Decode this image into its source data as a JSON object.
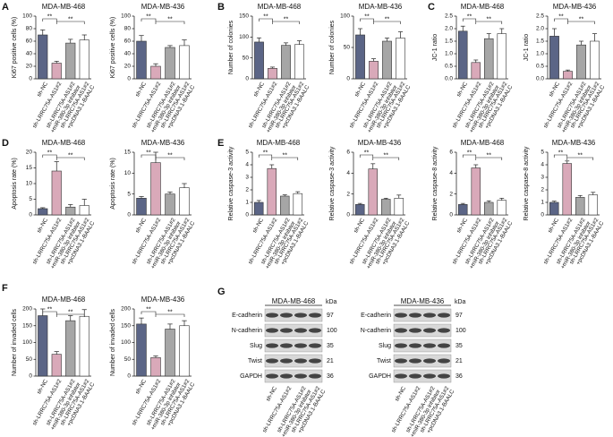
{
  "panel_labels": [
    "A",
    "B",
    "C",
    "D",
    "E",
    "F",
    "G"
  ],
  "chart_data": [
    {
      "type": "bar",
      "title": "MDA-MB-468",
      "y_label": "Ki67 positive cells (%)",
      "categories": [
        "sh-NC",
        "sh-LRRC75A-AS1#2",
        "sh-LRRC75A-AS1#2\n+miR-380-3p inhibitor",
        "sh-LRRC75A-AS1#2\n+pcDNA3.1-BAALC"
      ],
      "values": [
        70,
        25,
        57,
        62
      ],
      "errors": [
        8,
        3,
        6,
        8
      ],
      "colors": [
        "#5b6586",
        "#d9a9b9",
        "#a6a6a6",
        "#ffffff"
      ],
      "ylim": [
        0,
        100
      ],
      "yticks": [
        0,
        20,
        40,
        60,
        80,
        100
      ],
      "annotations": [
        "**",
        "**"
      ]
    },
    {
      "type": "bar",
      "title": "MDA-MB-436",
      "y_label": "Ki67 positive cells (%)",
      "categories": [
        "sh-NC",
        "sh-LRRC75A-AS1#2",
        "sh-LRRC75A-AS1#2\n+miR-380-3p inhibitor",
        "sh-LRRC75A-AS1#2\n+pcDNA3.1-BAALC"
      ],
      "values": [
        60,
        20,
        50,
        53
      ],
      "errors": [
        9,
        4,
        3,
        9
      ],
      "colors": [
        "#5b6586",
        "#d9a9b9",
        "#a6a6a6",
        "#ffffff"
      ],
      "ylim": [
        0,
        100
      ],
      "yticks": [
        0,
        20,
        40,
        60,
        80,
        100
      ],
      "annotations": [
        "**",
        "**"
      ]
    },
    {
      "type": "bar",
      "title": "MDA-MB-468",
      "y_label": "Number of colonies",
      "categories": [
        "sh-NC",
        "sh-LRRC75A-AS1#2",
        "sh-LRRC75A-AS1#2\n+miR-380-3p inhibitor",
        "sh-LRRC75A-AS1#2\n+pcDNA3.1-BAALC"
      ],
      "values": [
        88,
        25,
        80,
        82
      ],
      "errors": [
        10,
        3,
        6,
        9
      ],
      "colors": [
        "#5b6586",
        "#d9a9b9",
        "#a6a6a6",
        "#ffffff"
      ],
      "ylim": [
        0,
        150
      ],
      "yticks": [
        0,
        50,
        100,
        150
      ],
      "annotations": [
        "**",
        "**"
      ]
    },
    {
      "type": "bar",
      "title": "MDA-MB-436",
      "y_label": "Number of colonies",
      "categories": [
        "sh-NC",
        "sh-LRRC75A-AS1#2",
        "sh-LRRC75A-AS1#2\n+miR-380-3p inhibitor",
        "sh-LRRC75A-AS1#2\n+pcDNA3.1-BAALC"
      ],
      "values": [
        70,
        28,
        60,
        65
      ],
      "errors": [
        10,
        4,
        5,
        10
      ],
      "colors": [
        "#5b6586",
        "#d9a9b9",
        "#a6a6a6",
        "#ffffff"
      ],
      "ylim": [
        0,
        100
      ],
      "yticks": [
        0,
        50,
        100
      ],
      "annotations": [
        "**",
        "**"
      ]
    },
    {
      "type": "bar",
      "title": "MDA-MB-468",
      "y_label": "JC-1 ratio",
      "categories": [
        "sh-NC",
        "sh-LRRC75A-AS1#2",
        "sh-LRRC75A-AS1#2\n+miR-380-3p inhibitor",
        "sh-LRRC75A-AS1#2\n+pcDNA3.1-BAALC"
      ],
      "values": [
        1.9,
        0.65,
        1.6,
        1.8
      ],
      "errors": [
        0.2,
        0.1,
        0.2,
        0.2
      ],
      "colors": [
        "#5b6586",
        "#d9a9b9",
        "#a6a6a6",
        "#ffffff"
      ],
      "ylim": [
        0,
        2.5
      ],
      "yticks": [
        {
          "value": 0,
          "label": "0.0"
        },
        0.5,
        {
          "value": 1,
          "label": "1.0"
        },
        1.5,
        {
          "value": 2,
          "label": "2.0"
        },
        2.5
      ],
      "annotations": [
        "**",
        "**"
      ]
    },
    {
      "type": "bar",
      "title": "MDA-MB-436",
      "y_label": "JC-1 ratio",
      "categories": [
        "sh-NC",
        "sh-LRRC75A-AS1#2",
        "sh-LRRC75A-AS1#2\n+miR-380-3p inhibitor",
        "sh-LRRC75A-AS1#2\n+pcDNA3.1-BAALC"
      ],
      "values": [
        1.7,
        0.3,
        1.35,
        1.5
      ],
      "errors": [
        0.3,
        0.05,
        0.15,
        0.3
      ],
      "colors": [
        "#5b6586",
        "#d9a9b9",
        "#a6a6a6",
        "#ffffff"
      ],
      "ylim": [
        0,
        2.5
      ],
      "yticks": [
        {
          "value": 0,
          "label": "0.0"
        },
        0.5,
        {
          "value": 1,
          "label": "1.0"
        },
        1.5,
        {
          "value": 2,
          "label": "2.0"
        },
        2.5
      ],
      "annotations": [
        "**",
        "**"
      ]
    },
    {
      "type": "bar",
      "title": "MDA-MB-468",
      "y_label": "Apoptosis rate (%)",
      "categories": [
        "sh-NC",
        "sh-LRRC75A-AS1#2",
        "sh-LRRC75A-AS1#2\n+miR-380-3p inhibitor",
        "sh-LRRC75A-AS1#2\n+pcDNA3.1-BAALC"
      ],
      "values": [
        2,
        14,
        2.5,
        3
      ],
      "errors": [
        0.3,
        3,
        0.8,
        2
      ],
      "colors": [
        "#5b6586",
        "#d9a9b9",
        "#a6a6a6",
        "#ffffff"
      ],
      "ylim": [
        0,
        20
      ],
      "yticks": [
        0,
        5,
        10,
        15,
        20
      ],
      "annotations": [
        "**",
        "**"
      ]
    },
    {
      "type": "bar",
      "title": "MDA-MB-436",
      "y_label": "Apoptosis rate (%)",
      "categories": [
        "sh-NC",
        "sh-LRRC75A-AS1#2",
        "sh-LRRC75A-AS1#2\n+miR-380-3p inhibitor",
        "sh-LRRC75A-AS1#2\n+pcDNA3.1-BAALC"
      ],
      "values": [
        4,
        12.5,
        5,
        6.5
      ],
      "errors": [
        0.4,
        2.5,
        0.5,
        1
      ],
      "colors": [
        "#5b6586",
        "#d9a9b9",
        "#a6a6a6",
        "#ffffff"
      ],
      "ylim": [
        0,
        15
      ],
      "yticks": [
        0,
        5,
        10,
        15
      ],
      "annotations": [
        "**",
        "**"
      ]
    },
    {
      "type": "bar",
      "title": "MDA-MB-468",
      "y_label": "Relative caspase-3 activity",
      "categories": [
        "sh-NC",
        "sh-LRRC75A-AS1#2",
        "sh-LRRC75A-AS1#2\n+miR-380-3p inhibitor",
        "sh-LRRC75A-AS1#2\n+pcDNA3.1-BAALC"
      ],
      "values": [
        1,
        3.7,
        1.5,
        1.7
      ],
      "errors": [
        0.15,
        0.3,
        0.1,
        0.15
      ],
      "colors": [
        "#5b6586",
        "#d9a9b9",
        "#a6a6a6",
        "#ffffff"
      ],
      "ylim": [
        0,
        5
      ],
      "yticks": [
        0,
        1,
        2,
        3,
        4,
        5
      ],
      "annotations": [
        "**",
        "**"
      ]
    },
    {
      "type": "bar",
      "title": "MDA-MB-436",
      "y_label": "Relative caspase-3 activity",
      "categories": [
        "sh-NC",
        "sh-LRRC75A-AS1#2",
        "sh-LRRC75A-AS1#2\n+miR-380-3p inhibitor",
        "sh-LRRC75A-AS1#2\n+pcDNA3.1-BAALC"
      ],
      "values": [
        1,
        4.4,
        1.5,
        1.6
      ],
      "errors": [
        0.1,
        0.5,
        0.1,
        0.3
      ],
      "colors": [
        "#5b6586",
        "#d9a9b9",
        "#a6a6a6",
        "#ffffff"
      ],
      "ylim": [
        0,
        6
      ],
      "yticks": [
        0,
        2,
        4,
        6
      ],
      "annotations": [
        "**",
        "**"
      ]
    },
    {
      "type": "bar",
      "title": "MDA-MB-468",
      "y_label": "Relative caspase-8 activity",
      "categories": [
        "sh-NC",
        "sh-LRRC75A-AS1#2",
        "sh-LRRC75A-AS1#2\n+miR-380-3p inhibitor",
        "sh-LRRC75A-AS1#2\n+pcDNA3.1-BAALC"
      ],
      "values": [
        1,
        4.5,
        1.2,
        1.4
      ],
      "errors": [
        0.1,
        0.3,
        0.15,
        0.2
      ],
      "colors": [
        "#5b6586",
        "#d9a9b9",
        "#a6a6a6",
        "#ffffff"
      ],
      "ylim": [
        0,
        6
      ],
      "yticks": [
        0,
        2,
        4,
        6
      ],
      "annotations": [
        "**",
        "**"
      ]
    },
    {
      "type": "bar",
      "title": "MDA-MB-436",
      "y_label": "Relative caspase-8 activity",
      "categories": [
        "sh-NC",
        "sh-LRRC75A-AS1#2",
        "sh-LRRC75A-AS1#2\n+miR-380-3p inhibitor",
        "sh-LRRC75A-AS1#2\n+pcDNA3.1-BAALC"
      ],
      "values": [
        1,
        4.1,
        1.4,
        1.6
      ],
      "errors": [
        0.1,
        0.2,
        0.15,
        0.2
      ],
      "colors": [
        "#5b6586",
        "#d9a9b9",
        "#a6a6a6",
        "#ffffff"
      ],
      "ylim": [
        0,
        5
      ],
      "yticks": [
        0,
        1,
        2,
        3,
        4,
        5
      ],
      "annotations": [
        "**",
        "**"
      ]
    },
    {
      "type": "bar",
      "title": "MDA-MB-468",
      "y_label": "Number of invaded cells",
      "categories": [
        "sh-NC",
        "sh-LRRC75A-AS1#2",
        "sh-LRRC75A-AS1#2\n+miR-380-3p inhibitor",
        "sh-LRRC75A-AS1#2\n+pcDNA3.1-BAALC"
      ],
      "values": [
        180,
        65,
        165,
        178
      ],
      "errors": [
        20,
        8,
        15,
        20
      ],
      "colors": [
        "#5b6586",
        "#d9a9b9",
        "#a6a6a6",
        "#ffffff"
      ],
      "ylim": [
        0,
        200
      ],
      "yticks": [
        0,
        50,
        100,
        150,
        200
      ],
      "annotations": [
        "**",
        "**"
      ]
    },
    {
      "type": "bar",
      "title": "MDA-MB-436",
      "y_label": "Number of invaded cells",
      "categories": [
        "sh-NC",
        "sh-LRRC75A-AS1#2",
        "sh-LRRC75A-AS1#2\n+miR-380-3p inhibitor",
        "sh-LRRC75A-AS1#2\n+pcDNA3.1-BAALC"
      ],
      "values": [
        155,
        55,
        140,
        150
      ],
      "errors": [
        18,
        5,
        15,
        15
      ],
      "colors": [
        "#5b6586",
        "#d9a9b9",
        "#a6a6a6",
        "#ffffff"
      ],
      "ylim": [
        0,
        200
      ],
      "yticks": [
        0,
        50,
        100,
        150,
        200
      ],
      "annotations": [
        "**",
        "**"
      ]
    }
  ],
  "blot": {
    "titles": [
      "MDA-MB-468",
      "MDA-MB-436"
    ],
    "kda_label": "kDa",
    "proteins": [
      "E-cadherin",
      "N-cadherin",
      "Slug",
      "Twist",
      "GAPDH"
    ],
    "kda": [
      "97",
      "100",
      "35",
      "21",
      "36"
    ],
    "lanes": [
      "sh-NC",
      "sh-LRRC75A-AS1#2",
      "sh-LRRC75A-AS1#2\n+miR-380-3p inhibitor",
      "sh-LRRC75A-AS1#2\n+pcDNA3.1-BAALC"
    ]
  }
}
